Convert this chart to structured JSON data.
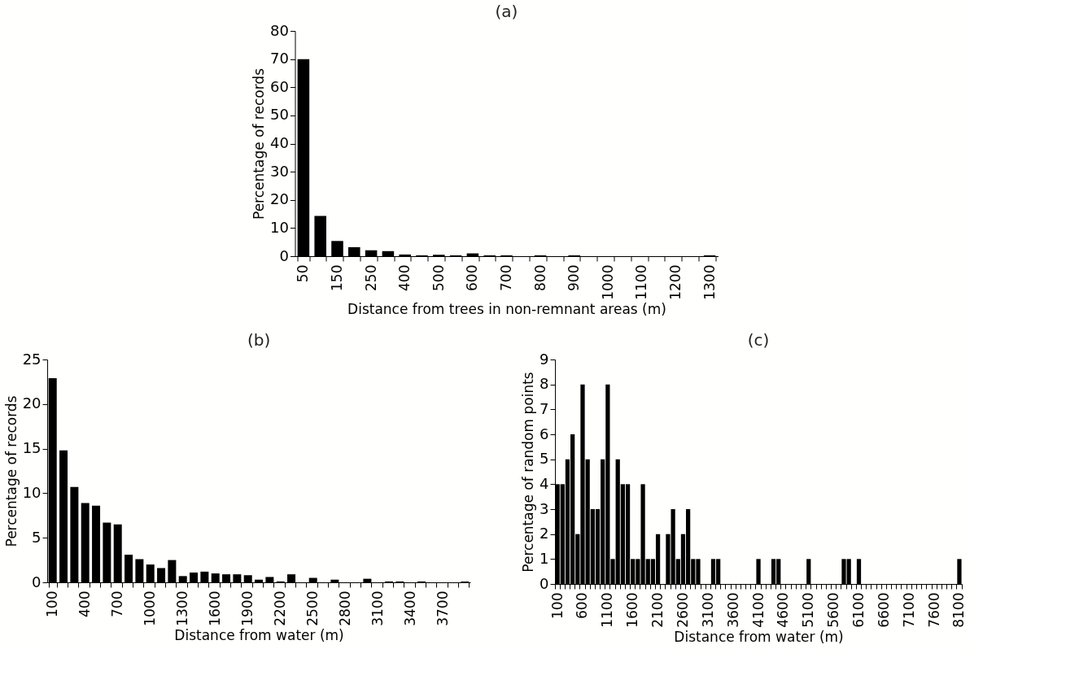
{
  "chart_data": [
    {
      "type": "bar",
      "title": "(a)",
      "xlabel": "Distance from trees in non-remnant areas (m)",
      "ylabel": "Percentage of records",
      "color": "#000000",
      "ylim": [
        0,
        80
      ],
      "yticks": [
        0,
        10,
        20,
        30,
        40,
        50,
        60,
        70,
        80
      ],
      "categories": [
        "50",
        null,
        "150",
        null,
        "250",
        null,
        "400",
        null,
        "500",
        null,
        "600",
        null,
        "700",
        null,
        "800",
        null,
        "900",
        null,
        "1000",
        null,
        "1100",
        null,
        "1200",
        null,
        "1300"
      ],
      "values": [
        70,
        14.3,
        5.4,
        3.2,
        2.1,
        1.8,
        0.6,
        0.3,
        0.5,
        0.3,
        1.0,
        0.3,
        0.3,
        0,
        0.3,
        0,
        0.3,
        0,
        0,
        0,
        0,
        0,
        0,
        0,
        0.3
      ]
    },
    {
      "type": "bar",
      "title": "(b)",
      "xlabel": "Distance from water (m)",
      "ylabel": "Percentage of records",
      "color": "#000000",
      "ylim": [
        0,
        25
      ],
      "yticks": [
        0,
        5,
        10,
        15,
        20,
        25
      ],
      "categories": [
        "100",
        null,
        null,
        "400",
        null,
        null,
        "700",
        null,
        null,
        "1000",
        null,
        null,
        "1300",
        null,
        null,
        "1600",
        null,
        null,
        "1900",
        null,
        null,
        "2200",
        null,
        null,
        "2500",
        null,
        null,
        "2800",
        null,
        null,
        "3100",
        null,
        null,
        "3400",
        null,
        null,
        "3700",
        null,
        null
      ],
      "values": [
        22.9,
        14.8,
        10.7,
        8.9,
        8.6,
        6.7,
        6.5,
        3.1,
        2.6,
        2.0,
        1.6,
        2.5,
        0.7,
        1.1,
        1.2,
        1.0,
        0.9,
        0.9,
        0.8,
        0.3,
        0.6,
        0.1,
        0.9,
        0,
        0.5,
        0,
        0.3,
        0,
        0,
        0.4,
        0,
        0.1,
        0.1,
        0,
        0.1,
        0,
        0,
        0,
        0.1
      ]
    },
    {
      "type": "bar",
      "title": "(c)",
      "xlabel": "Distance from water (m)",
      "ylabel": "Percentage of random points",
      "color": "#000000",
      "ylim": [
        0,
        9
      ],
      "yticks": [
        0,
        1,
        2,
        3,
        4,
        5,
        6,
        7,
        8,
        9
      ],
      "categories": [
        "100",
        null,
        null,
        null,
        null,
        "600",
        null,
        null,
        null,
        null,
        "1100",
        null,
        null,
        null,
        null,
        "1600",
        null,
        null,
        null,
        null,
        "2100",
        null,
        null,
        null,
        null,
        "2600",
        null,
        null,
        null,
        null,
        "3100",
        null,
        null,
        null,
        null,
        "3600",
        null,
        null,
        null,
        null,
        "4100",
        null,
        null,
        null,
        null,
        "4600",
        null,
        null,
        null,
        null,
        "5100",
        null,
        null,
        null,
        null,
        "5600",
        null,
        null,
        null,
        null,
        "6100",
        null,
        null,
        null,
        null,
        "6600",
        null,
        null,
        null,
        null,
        "7100",
        null,
        null,
        null,
        null,
        "7600",
        null,
        null,
        null,
        null,
        "8100"
      ],
      "values": [
        4,
        4,
        5,
        6,
        2,
        8,
        5,
        3,
        3,
        5,
        8,
        1,
        5,
        4,
        4,
        1,
        1,
        4,
        1,
        1,
        2,
        0,
        2,
        3,
        1,
        2,
        3,
        1,
        1,
        0,
        0,
        1,
        1,
        0,
        0,
        0,
        0,
        0,
        0,
        0,
        1,
        0,
        0,
        1,
        1,
        0,
        0,
        0,
        0,
        0,
        1,
        0,
        0,
        0,
        0,
        0,
        0,
        1,
        1,
        0,
        1,
        0,
        0,
        0,
        0,
        0,
        0,
        0,
        0,
        0,
        0,
        0,
        0,
        0,
        0,
        0,
        0,
        0,
        0,
        0,
        1
      ]
    }
  ]
}
